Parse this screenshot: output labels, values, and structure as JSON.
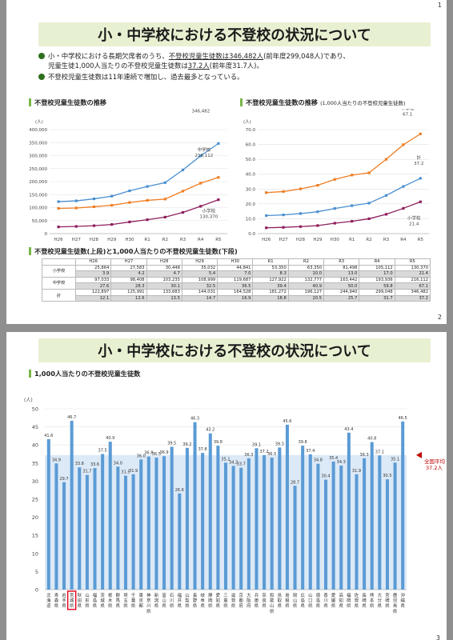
{
  "page1": {
    "page_number": "1",
    "title": "小・中学校における不登校の状況について",
    "bullet1_line1_pre": "小・中学校における長期欠席者のうち、",
    "bullet1_line1_u": "不登校児童生徒数は346,482人",
    "bullet1_line1_post": "(前年度299,048人)であり、",
    "bullet1_line2_pre": "児童生徒1,000人当たりの不登校児童生徒数は",
    "bullet1_line2_u": "37.2人",
    "bullet1_line2_post": "(前年度31.7人)。",
    "bullet2": "不登校児童生徒数は11年連続で増加し、過去最多となっている。",
    "chart1_heading": "不登校児童生徒数の推移",
    "chart2_heading": "不登校児童生徒数の推移",
    "chart2_heading_note": "(1,000人当たりの不登校児童生徒数)",
    "table_heading": "不登校児童生徒数(上段)と1,000人当たりの不登校児童生徒数(下段)",
    "table_years": [
      "H26",
      "H27",
      "H28",
      "H29",
      "H30",
      "R1",
      "R2",
      "R3",
      "R4",
      "R5"
    ],
    "table_rows": [
      {
        "label": "小学校",
        "count": [
          "25,864",
          "27,583",
          "30,448",
          "35,032",
          "44,841",
          "53,350",
          "63,350",
          "81,498",
          "105,112",
          "130,370"
        ],
        "rate": [
          "3.9",
          "4.2",
          "4.7",
          "5.4",
          "7.0",
          "8.3",
          "10.0",
          "13.0",
          "17.0",
          "21.4"
        ]
      },
      {
        "label": "中学校",
        "count": [
          "97,033",
          "98,408",
          "103,235",
          "108,999",
          "119,687",
          "127,922",
          "132,777",
          "163,442",
          "193,936",
          "216,112"
        ],
        "rate": [
          "27.6",
          "28.3",
          "30.1",
          "32.5",
          "36.5",
          "39.4",
          "40.9",
          "50.0",
          "59.8",
          "67.1"
        ]
      },
      {
        "label": "計",
        "count": [
          "122,897",
          "125,991",
          "133,683",
          "144,031",
          "164,528",
          "181,272",
          "196,127",
          "244,940",
          "299,048",
          "346,482"
        ],
        "rate": [
          "12.1",
          "12.6",
          "13.5",
          "14.7",
          "16.9",
          "18.8",
          "20.5",
          "25.7",
          "31.7",
          "37.2"
        ]
      }
    ]
  },
  "page2": {
    "page_number": "2",
    "title": "小・中学校における不登校の状況について",
    "chart_heading": "1,000人当たりの不登校児童生徒数",
    "avg_line1": "全国平均",
    "avg_line2": "37.2人",
    "footer_number": "3"
  },
  "colors": {
    "total": "#4a8fd0",
    "middle": "#ef7d22",
    "elementary": "#8e1f5c",
    "bar": "#5b9bd5",
    "average_band": "#dce9f6",
    "average_marker": "#c00000",
    "highlight_box": "#e8001e",
    "banner": "#e8f0d2",
    "bullet": "#2e6f1e"
  },
  "chart_data": [
    {
      "type": "line",
      "title": "不登校児童生徒数の推移",
      "ylabel": "(人)",
      "x": [
        "H26",
        "H27",
        "H28",
        "H29",
        "H30",
        "R1",
        "R2",
        "R3",
        "R4",
        "R5"
      ],
      "ylim": [
        0,
        400000
      ],
      "yticks": [
        "0",
        "50,000",
        "100,000",
        "150,000",
        "200,000",
        "250,000",
        "300,000",
        "350,000",
        "400,000"
      ],
      "series": [
        {
          "name": "計",
          "values": [
            122897,
            125991,
            133683,
            144031,
            164528,
            181272,
            196127,
            244940,
            299048,
            346482
          ],
          "end_label": "346,482"
        },
        {
          "name": "中学校",
          "values": [
            97033,
            98408,
            103235,
            108999,
            119687,
            127922,
            132777,
            163442,
            193936,
            216112
          ],
          "end_label": "216,112"
        },
        {
          "name": "小学校",
          "values": [
            25864,
            27583,
            30448,
            35032,
            44841,
            53350,
            63350,
            81498,
            105112,
            130370
          ],
          "end_label": "130,370"
        }
      ]
    },
    {
      "type": "line",
      "title": "不登校児童生徒数の推移(1,000人当たりの不登校児童生徒数)",
      "ylabel": "(人)",
      "x": [
        "H26",
        "H27",
        "H28",
        "H29",
        "H30",
        "R1",
        "R2",
        "R3",
        "R4",
        "R5"
      ],
      "ylim": [
        0,
        70
      ],
      "yticks": [
        "0.0",
        "10.0",
        "20.0",
        "30.0",
        "40.0",
        "50.0",
        "60.0",
        "70.0"
      ],
      "series": [
        {
          "name": "中学校",
          "values": [
            27.6,
            28.3,
            30.1,
            32.5,
            36.5,
            39.4,
            40.9,
            50.0,
            59.8,
            67.1
          ],
          "end_label": "67.1"
        },
        {
          "name": "計",
          "values": [
            12.1,
            12.6,
            13.5,
            14.7,
            16.9,
            18.8,
            20.5,
            25.7,
            31.7,
            37.2
          ],
          "end_label": "37.2"
        },
        {
          "name": "小学校",
          "values": [
            3.9,
            4.2,
            4.7,
            5.4,
            7.0,
            8.3,
            10.0,
            13.0,
            17.0,
            21.4
          ],
          "end_label": "21.4"
        }
      ]
    },
    {
      "type": "bar",
      "title": "1,000人当たりの不登校児童生徒数",
      "ylabel": "(人)",
      "ylim": [
        0,
        50
      ],
      "yticks": [
        "0",
        "5",
        "10",
        "15",
        "20",
        "25",
        "30",
        "35",
        "40",
        "45",
        "50"
      ],
      "average": 37.2,
      "highlighted": "宮城県",
      "categories": [
        "北海道",
        "青森県",
        "岩手県",
        "宮城県",
        "秋田県",
        "山形県",
        "福島県",
        "茨城県",
        "栃木県",
        "群馬県",
        "埼玉県",
        "千葉県",
        "東京都",
        "神奈川県",
        "新潟県",
        "富山県",
        "石川県",
        "福井県",
        "山梨県",
        "長野県",
        "岐阜県",
        "静岡県",
        "愛知県",
        "三重県",
        "滋賀県",
        "京都府",
        "大阪府",
        "兵庫県",
        "奈良県",
        "和歌山県",
        "鳥取県",
        "島根県",
        "岡山県",
        "広島県",
        "山口県",
        "徳島県",
        "香川県",
        "愛媛県",
        "高知県",
        "福岡県",
        "佐賀県",
        "長崎県",
        "熊本県",
        "大分県",
        "宮崎県",
        "鹿児島県",
        "沖縄県"
      ],
      "values": [
        41.6,
        34.9,
        29.7,
        46.7,
        33.8,
        31.7,
        33.6,
        37.5,
        40.9,
        34.0,
        31.5,
        31.9,
        36.0,
        36.8,
        36.5,
        36.9,
        39.5,
        26.6,
        39.2,
        46.3,
        37.8,
        43.2,
        39.8,
        35.1,
        34.2,
        33.7,
        36.3,
        39.1,
        37.2,
        36.5,
        39.3,
        45.6,
        28.7,
        39.8,
        37.4,
        34.8,
        30.4,
        35.4,
        34.3,
        43.4,
        31.9,
        36.3,
        40.8,
        37.1,
        30.5,
        35.1,
        46.5
      ]
    }
  ]
}
